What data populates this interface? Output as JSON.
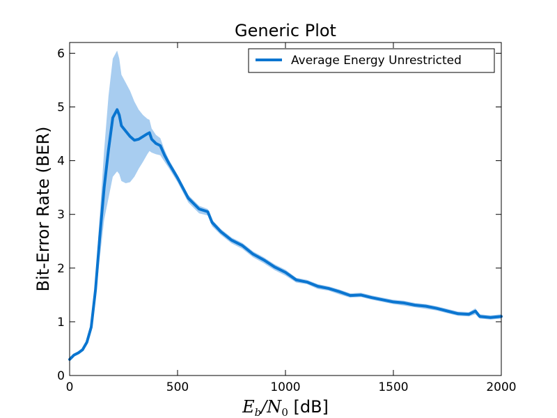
{
  "chart_data": {
    "type": "line",
    "title": "Generic Plot",
    "xlabel": {
      "main": "E",
      "sub1": "b",
      "slash": "/N",
      "sub2": "0",
      "unit": " [dB]"
    },
    "ylabel": "Bit-Error Rate (BER)",
    "xlim": [
      0,
      2000
    ],
    "ylim": [
      0,
      6.2
    ],
    "xticks": [
      0,
      500,
      1000,
      1500,
      2000
    ],
    "xtick_labels": [
      "0",
      "500",
      "1000",
      "1500",
      "2000"
    ],
    "yticks": [
      0,
      1,
      2,
      3,
      4,
      5,
      6
    ],
    "ytick_labels": [
      "0",
      "1",
      "2",
      "3",
      "4",
      "5",
      "6"
    ],
    "grid": false,
    "legend_position": "top-right",
    "colors": {
      "line": "#0a75d0",
      "band": "#a8cdf0"
    },
    "series": [
      {
        "name": "Average Energy Unrestricted",
        "x": [
          0,
          20,
          40,
          60,
          80,
          100,
          120,
          140,
          160,
          180,
          200,
          220,
          230,
          240,
          260,
          280,
          300,
          320,
          340,
          360,
          370,
          380,
          400,
          420,
          440,
          460,
          500,
          550,
          600,
          640,
          660,
          700,
          750,
          800,
          850,
          900,
          950,
          1000,
          1050,
          1100,
          1150,
          1200,
          1250,
          1300,
          1350,
          1400,
          1450,
          1500,
          1550,
          1600,
          1650,
          1700,
          1750,
          1800,
          1850,
          1880,
          1900,
          1950,
          2000
        ],
        "y": [
          0.3,
          0.38,
          0.42,
          0.48,
          0.62,
          0.9,
          1.6,
          2.6,
          3.5,
          4.2,
          4.8,
          4.95,
          4.85,
          4.65,
          4.55,
          4.45,
          4.38,
          4.4,
          4.45,
          4.5,
          4.52,
          4.4,
          4.32,
          4.28,
          4.1,
          3.95,
          3.68,
          3.3,
          3.1,
          3.05,
          2.85,
          2.68,
          2.52,
          2.42,
          2.26,
          2.15,
          2.02,
          1.92,
          1.78,
          1.74,
          1.66,
          1.62,
          1.56,
          1.49,
          1.5,
          1.45,
          1.41,
          1.37,
          1.35,
          1.31,
          1.29,
          1.25,
          1.2,
          1.15,
          1.14,
          1.2,
          1.1,
          1.08,
          1.1
        ],
        "upper": [
          0.32,
          0.4,
          0.44,
          0.51,
          0.66,
          0.98,
          1.8,
          3.0,
          4.2,
          5.2,
          5.9,
          6.05,
          5.9,
          5.6,
          5.45,
          5.3,
          5.1,
          4.95,
          4.85,
          4.78,
          4.76,
          4.6,
          4.48,
          4.42,
          4.2,
          4.02,
          3.74,
          3.36,
          3.16,
          3.1,
          2.9,
          2.73,
          2.57,
          2.47,
          2.31,
          2.2,
          2.07,
          1.97,
          1.82,
          1.78,
          1.7,
          1.66,
          1.6,
          1.53,
          1.54,
          1.49,
          1.45,
          1.41,
          1.39,
          1.35,
          1.33,
          1.29,
          1.24,
          1.19,
          1.18,
          1.25,
          1.14,
          1.12,
          1.14
        ],
        "lower": [
          0.28,
          0.36,
          0.4,
          0.45,
          0.58,
          0.82,
          1.42,
          2.2,
          2.9,
          3.3,
          3.7,
          3.8,
          3.75,
          3.62,
          3.58,
          3.6,
          3.7,
          3.85,
          3.98,
          4.12,
          4.18,
          4.15,
          4.12,
          4.1,
          3.98,
          3.86,
          3.6,
          3.22,
          3.02,
          2.98,
          2.78,
          2.62,
          2.46,
          2.36,
          2.2,
          2.09,
          1.96,
          1.86,
          1.73,
          1.7,
          1.61,
          1.58,
          1.51,
          1.45,
          1.46,
          1.41,
          1.37,
          1.33,
          1.3,
          1.27,
          1.24,
          1.21,
          1.16,
          1.11,
          1.1,
          1.14,
          1.06,
          1.04,
          1.06
        ]
      }
    ]
  }
}
